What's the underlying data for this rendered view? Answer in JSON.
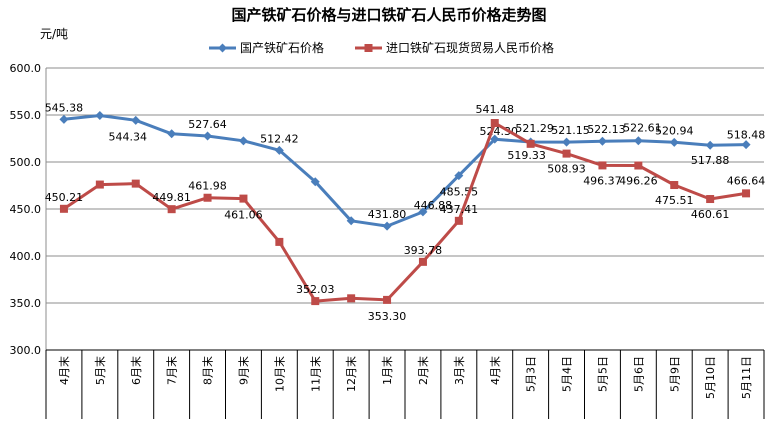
{
  "chart_data": {
    "type": "line",
    "title": "国产铁矿石价格与进口铁矿石人民币价格走势图",
    "ylabel": "元/吨",
    "xlabel": "",
    "ylim": [
      300,
      600
    ],
    "yticks": [
      "300.0",
      "350.0",
      "400.0",
      "450.0",
      "500.0",
      "550.0",
      "600.0"
    ],
    "grid": true,
    "legend": "top",
    "categories": [
      "4月末",
      "5月末",
      "6月末",
      "7月末",
      "8月末",
      "9月末",
      "10月末",
      "11月末",
      "12月末",
      "1月末",
      "2月末",
      "3月末",
      "4月末",
      "5月3日",
      "5月4日",
      "5月5日",
      "5月6日",
      "5月9日",
      "5月10日",
      "5月11日"
    ],
    "series": [
      {
        "name": "国产铁矿石价格",
        "color": "#4a7ebb",
        "marker": "diamond",
        "values": [
          545.38,
          549.5,
          544.34,
          530.0,
          527.64,
          522.5,
          512.42,
          479.0,
          437.5,
          431.8,
          446.88,
          485.55,
          524.3,
          521.29,
          521.15,
          522.13,
          522.61,
          520.94,
          517.88,
          518.48
        ],
        "labels": [
          "545.38",
          "",
          "544.34",
          "",
          "527.64",
          "",
          "512.42",
          "",
          "",
          "431.80",
          "446.88",
          "485.55",
          "524.30",
          "521.29",
          "521.15",
          "522.13",
          "522.61",
          "520.94",
          "517.88",
          "518.48"
        ]
      },
      {
        "name": "进口铁矿石现货贸易人民币价格",
        "color": "#be4b48",
        "marker": "square",
        "values": [
          450.21,
          476.0,
          477.0,
          449.81,
          461.98,
          461.06,
          415.0,
          352.03,
          355.0,
          353.3,
          393.78,
          437.41,
          541.48,
          519.33,
          508.93,
          496.37,
          496.26,
          475.51,
          460.61,
          466.64
        ],
        "labels": [
          "450.21",
          "",
          "",
          "449.81",
          "461.98",
          "461.06",
          "",
          "352.03",
          "",
          "353.30",
          "393.78",
          "437.41",
          "541.48",
          "519.33",
          "508.93",
          "496.37",
          "496.26",
          "475.51",
          "460.61",
          "466.64"
        ]
      }
    ]
  }
}
